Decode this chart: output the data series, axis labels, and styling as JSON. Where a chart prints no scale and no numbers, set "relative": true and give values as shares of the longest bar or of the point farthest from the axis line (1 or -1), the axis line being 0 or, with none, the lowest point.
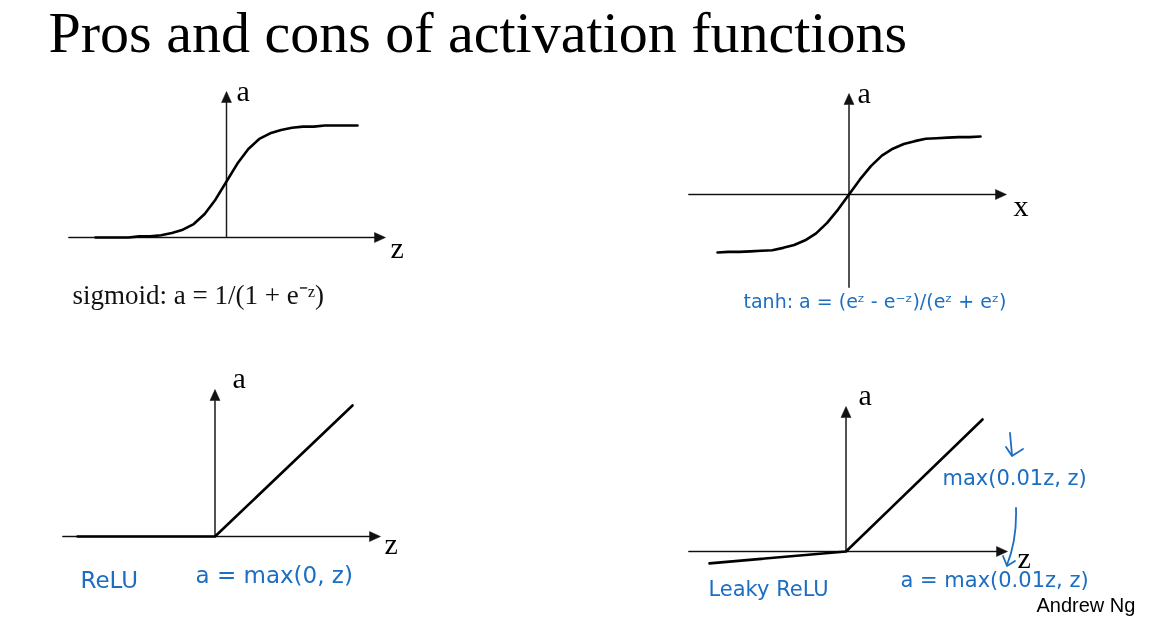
{
  "chart_data": [
    {
      "type": "other",
      "title": "Pros and cons of activation functions"
    },
    {
      "type": "line",
      "relative": true,
      "grid": false,
      "xlabel": "z",
      "ylabel": "a",
      "categories": [
        null,
        null,
        null,
        null,
        null,
        null,
        null,
        null,
        null,
        null,
        null,
        null,
        null,
        null,
        null,
        null,
        null,
        null,
        null,
        null,
        null,
        null,
        null,
        null,
        null
      ],
      "series": [
        {
          "color": "#000000",
          "values": [
            0,
            0,
            0,
            0,
            0.01,
            0.01,
            0.02,
            0.04,
            0.07,
            0.12,
            0.21,
            0.34,
            0.5,
            0.66,
            0.79,
            0.88,
            0.93,
            0.96,
            0.98,
            0.99,
            0.99,
            1,
            1,
            1,
            1
          ]
        }
      ],
      "annotations": [
        "sigmoid: a = 1/(1 + e⁻ᶻ)"
      ]
    },
    {
      "type": "line",
      "relative": true,
      "grid": false,
      "xlabel": "x",
      "ylabel": "a",
      "categories": [
        null,
        null,
        null,
        null,
        null,
        null,
        null,
        null,
        null,
        null,
        null,
        null,
        null,
        null,
        null,
        null,
        null,
        null,
        null,
        null,
        null,
        null,
        null,
        null,
        null
      ],
      "series": [
        {
          "color": "#000000",
          "values": [
            -1,
            -0.99,
            -0.99,
            -0.98,
            -0.97,
            -0.96,
            -0.92,
            -0.87,
            -0.79,
            -0.67,
            -0.49,
            -0.26,
            0,
            0.26,
            0.49,
            0.67,
            0.79,
            0.87,
            0.92,
            0.96,
            0.97,
            0.98,
            0.99,
            0.99,
            1
          ]
        }
      ],
      "annotations": [
        "tanh: a = (eᶻ - e⁻ᶻ)/(eᶻ + eᶻ)"
      ]
    },
    {
      "type": "line",
      "relative": true,
      "grid": false,
      "xlabel": "z",
      "ylabel": "a",
      "categories": [
        null,
        null,
        null
      ],
      "series": [
        {
          "color": "#000000",
          "values": [
            0,
            0,
            1
          ]
        }
      ],
      "annotations": [
        "ReLU",
        "a = max(0, z)"
      ]
    },
    {
      "type": "line",
      "relative": true,
      "grid": false,
      "xlabel": "z",
      "ylabel": "a",
      "categories": [
        null,
        null,
        null
      ],
      "series": [
        {
          "color": "#000000",
          "values": [
            -0.09,
            0,
            1
          ]
        }
      ],
      "annotations": [
        "max(0.01z, z)",
        "Leaky ReLU",
        "a = max(0.01z, z)",
        "Andrew Ng"
      ]
    }
  ]
}
